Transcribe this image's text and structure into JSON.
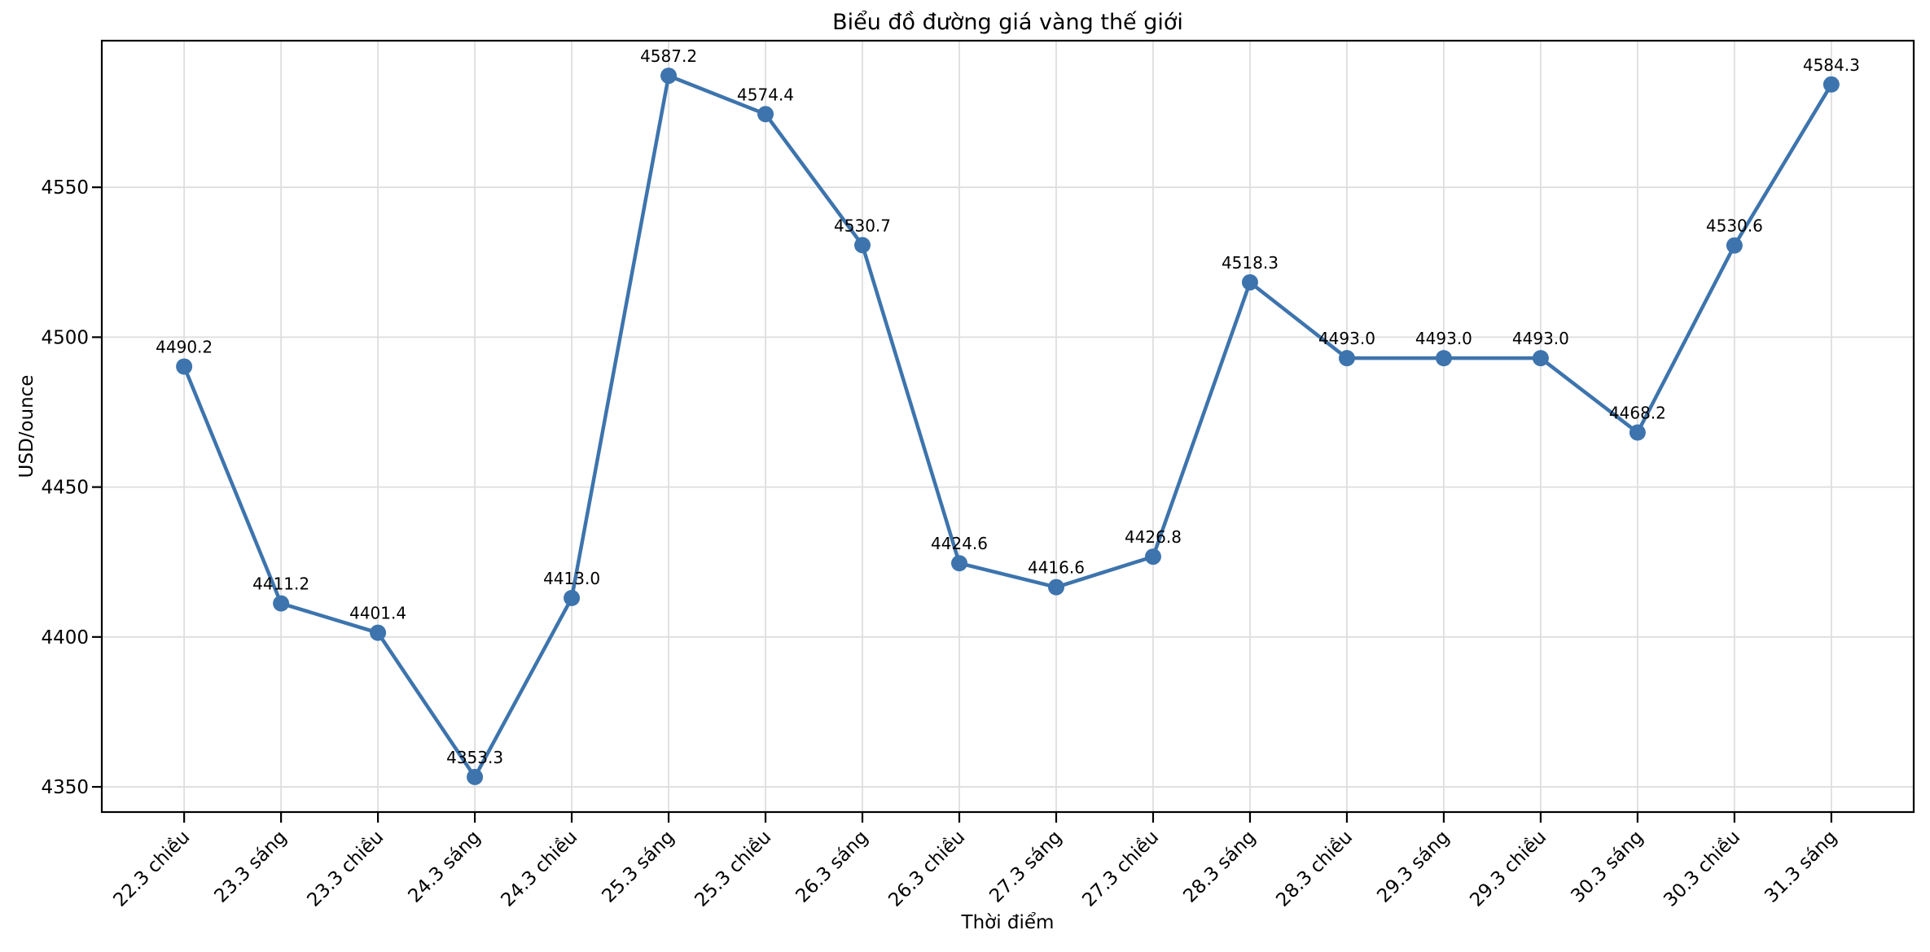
{
  "chart_data": {
    "type": "line",
    "title": "Biểu đồ đường giá vàng thế giới",
    "xlabel": "Thời điểm",
    "ylabel": "USD/ounce",
    "categories": [
      "22.3 chiều",
      "23.3 sáng",
      "23.3 chiều",
      "24.3 sáng",
      "24.3 chiều",
      "25.3 sáng",
      "25.3 chiều",
      "26.3 sáng",
      "26.3 chiều",
      "27.3 sáng",
      "27.3 chiều",
      "28.3 sáng",
      "28.3 chiều",
      "29.3 sáng",
      "29.3 chiều",
      "30.3 sáng",
      "30.3 chiều",
      "31.3 sáng"
    ],
    "values": [
      4490.2,
      4411.2,
      4401.4,
      4353.3,
      4413.0,
      4587.2,
      4574.4,
      4530.7,
      4424.6,
      4416.6,
      4426.8,
      4518.3,
      4493.0,
      4493.0,
      4493.0,
      4468.2,
      4530.6,
      4584.3
    ],
    "point_labels": [
      "4490.2",
      "4411.2",
      "4401.4",
      "4353.3",
      "4413.0",
      "4587.2",
      "4574.4",
      "4530.7",
      "4424.6",
      "4416.6",
      "4426.8",
      "4518.3",
      "4493.0",
      "4493.0",
      "4493.0",
      "4468.2",
      "4530.6",
      "4584.3"
    ],
    "yticks": [
      4350,
      4400,
      4450,
      4500,
      4550
    ],
    "ylim": [
      4341.6,
      4598.9
    ],
    "grid": true,
    "legend_position": "none",
    "line_color": "#3d74ad",
    "grid_color": "#dedede",
    "spine_color": "#000000",
    "marker": "circle-filled"
  }
}
